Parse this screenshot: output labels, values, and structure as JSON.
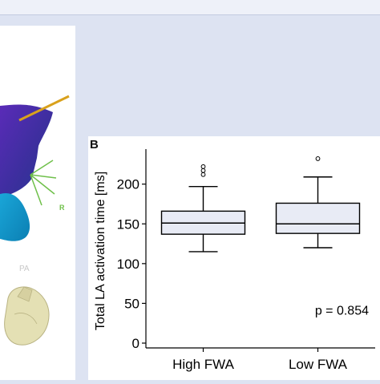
{
  "panel_label": "B",
  "illustration": {
    "view_label": "PA",
    "marker_label": "R"
  },
  "chart_data": {
    "type": "box",
    "ylabel": "Total LA activation time [ms]",
    "ylim": [
      0,
      240
    ],
    "yticks": [
      0,
      50,
      100,
      150,
      200
    ],
    "categories": [
      "High FWA",
      "Low FWA"
    ],
    "boxes": [
      {
        "category": "High FWA",
        "whisker_low": 115,
        "q1": 137,
        "median": 151,
        "q3": 166,
        "whisker_high": 197,
        "outliers": [
          212,
          217,
          222
        ]
      },
      {
        "category": "Low FWA",
        "whisker_low": 120,
        "q1": 138,
        "median": 150,
        "q3": 176,
        "whisker_high": 209,
        "outliers": [
          232
        ]
      }
    ],
    "annotation": "p = 0.854",
    "colors": {
      "box_fill": "#e8ebf5",
      "stroke": "#000000"
    }
  }
}
